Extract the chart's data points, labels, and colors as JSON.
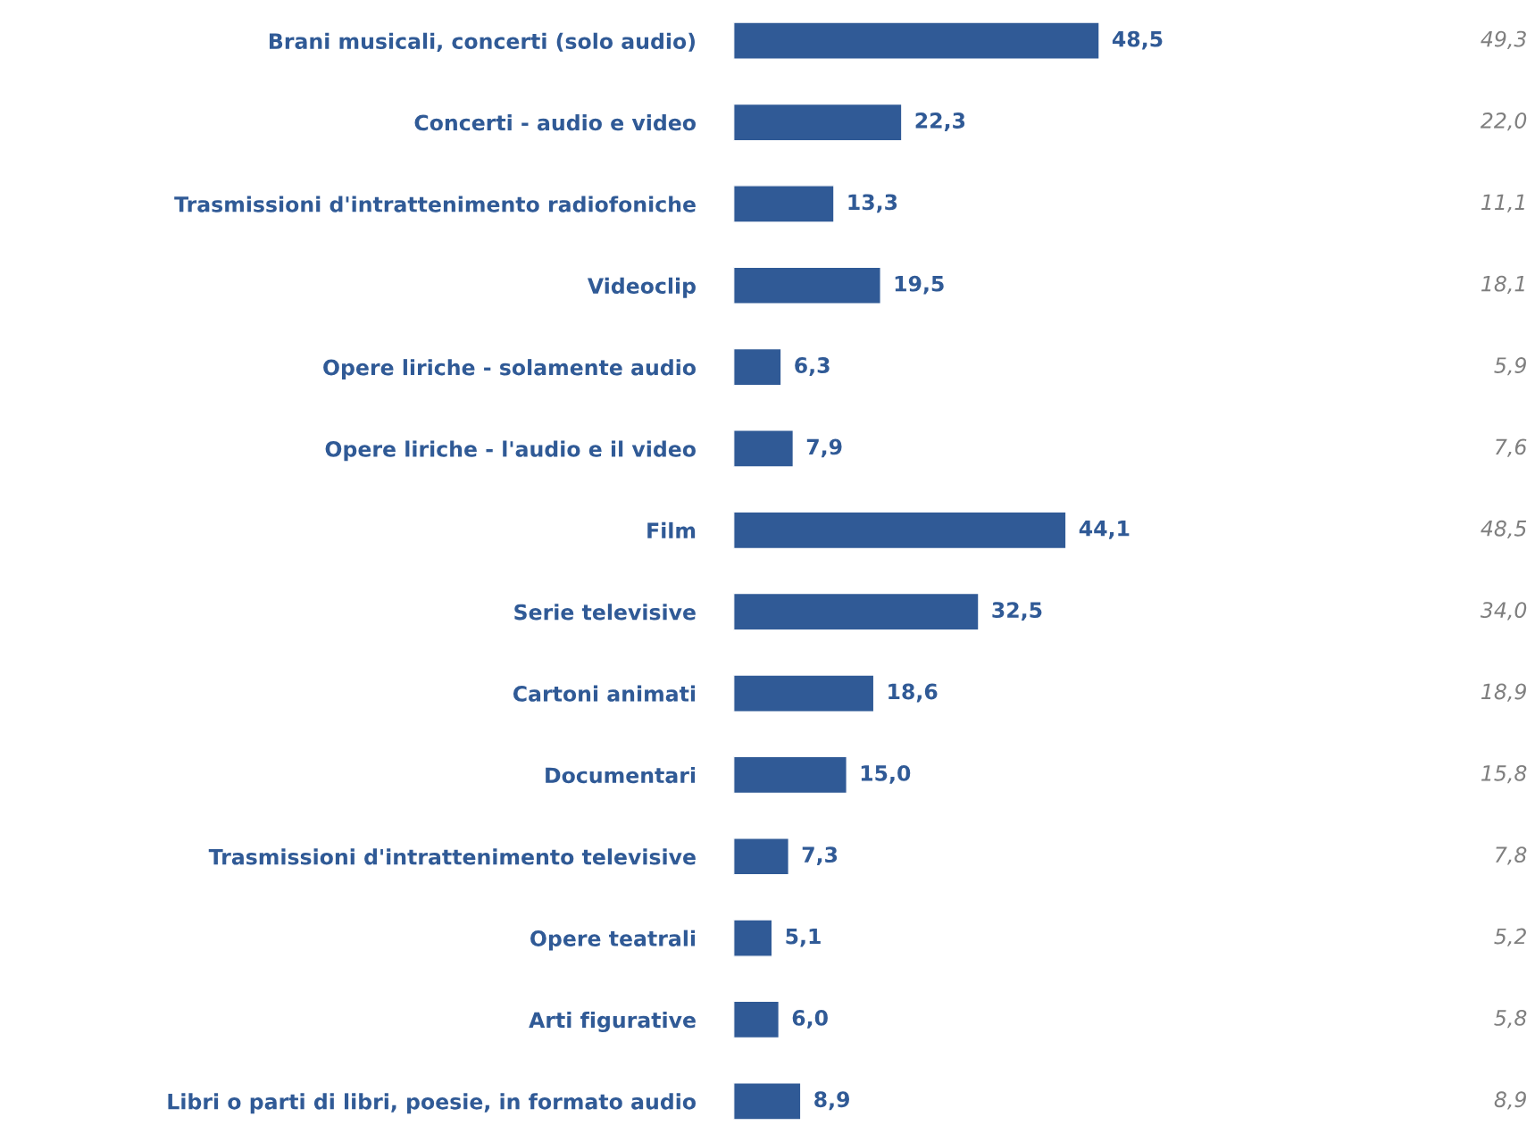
{
  "chart_data": {
    "type": "bar",
    "orientation": "horizontal",
    "categories": [
      "Brani musicali, concerti (solo audio)",
      "Concerti - audio e video",
      "Trasmissioni d'intrattenimento radiofoniche",
      "Videoclip",
      "Opere liriche - solamente audio",
      "Opere liriche - l'audio e il video",
      "Film",
      "Serie televisive",
      "Cartoni animati",
      "Documentari",
      "Trasmissioni d'intrattenimento televisive",
      "Opere teatrali",
      "Arti figurative",
      "Libri o parti di libri, poesie, in formato audio"
    ],
    "values": [
      48.5,
      22.3,
      13.3,
      19.5,
      6.3,
      7.9,
      44.1,
      32.5,
      18.6,
      15.0,
      7.3,
      5.1,
      6.0,
      8.9
    ],
    "color": "#305a96",
    "value_labels": [
      "48,5",
      "22,3",
      "13,3",
      "19,5",
      "6,3",
      "7,9",
      "44,1",
      "32,5",
      "18,6",
      "15,0",
      "7,3",
      "5,1",
      "6,0",
      "8,9"
    ],
    "annotations": [
      "49,3",
      "22,0",
      "11,1",
      "18,1",
      "5,9",
      "7,6",
      "48,5",
      "34,0",
      "18,9",
      "15,8",
      "7,8",
      "5,2",
      "5,8",
      "8,9"
    ],
    "grid": false,
    "legend": false
  }
}
